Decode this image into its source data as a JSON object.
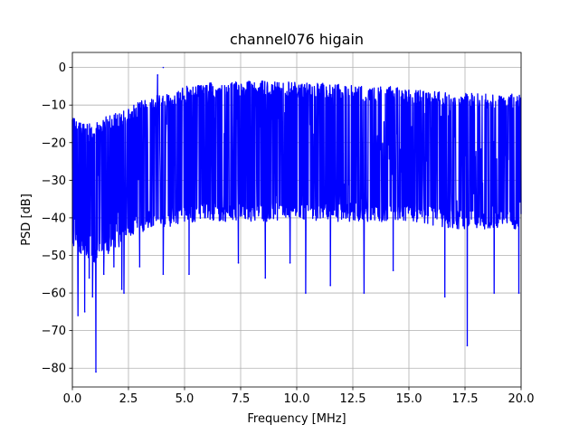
{
  "chart_data": {
    "type": "line",
    "title": "channel076 higain",
    "xlabel": "Frequency [MHz]",
    "ylabel": "PSD [dB]",
    "xlim": [
      0,
      20
    ],
    "ylim": [
      -85,
      4
    ],
    "xticks": [
      0.0,
      2.5,
      5.0,
      7.5,
      10.0,
      12.5,
      15.0,
      17.5,
      20.0
    ],
    "xtick_labels": [
      "0.0",
      "2.5",
      "5.0",
      "7.5",
      "10.0",
      "12.5",
      "15.0",
      "17.5",
      "20.0"
    ],
    "yticks": [
      0,
      -10,
      -20,
      -30,
      -40,
      -50,
      -60,
      -70,
      -80
    ],
    "ytick_labels": [
      "0",
      "−10",
      "−20",
      "−30",
      "−40",
      "−50",
      "−60",
      "−70",
      "−80"
    ],
    "grid": true,
    "series": [
      {
        "color": "#0000ff",
        "envelope": {
          "x": [
            0.0,
            0.5,
            1.0,
            1.5,
            2.0,
            2.5,
            3.0,
            3.5,
            4.0,
            4.5,
            5.0,
            5.5,
            6.0,
            7.0,
            8.0,
            9.0,
            10.0,
            11.0,
            12.0,
            13.0,
            14.0,
            15.0,
            16.0,
            17.0,
            18.0,
            19.0,
            20.0
          ],
          "upper": [
            -13,
            -15,
            -15,
            -13,
            -12,
            -11,
            -9,
            -8,
            -7,
            -6,
            -5,
            -5,
            -4,
            -4,
            -3.5,
            -3.5,
            -4,
            -4,
            -4.5,
            -5,
            -5,
            -5.5,
            -6,
            -6.5,
            -7,
            -7,
            -7
          ],
          "lower": [
            -48,
            -50,
            -52,
            -50,
            -48,
            -46,
            -44,
            -43,
            -43,
            -42,
            -42,
            -41,
            -41,
            -41,
            -41,
            -41,
            -41,
            -41,
            -41,
            -41,
            -41,
            -41,
            -42,
            -43,
            -43,
            -43,
            -43
          ]
        },
        "peaks": [
          {
            "x": 3.8,
            "y": -2
          },
          {
            "x": 4.05,
            "y": 0
          }
        ],
        "dips": [
          {
            "x": 0.25,
            "y": -66
          },
          {
            "x": 0.55,
            "y": -65
          },
          {
            "x": 0.75,
            "y": -56
          },
          {
            "x": 0.9,
            "y": -61
          },
          {
            "x": 1.05,
            "y": -81
          },
          {
            "x": 1.4,
            "y": -55
          },
          {
            "x": 1.85,
            "y": -53
          },
          {
            "x": 2.2,
            "y": -59
          },
          {
            "x": 2.3,
            "y": -60
          },
          {
            "x": 3.0,
            "y": -53
          },
          {
            "x": 4.05,
            "y": -55
          },
          {
            "x": 5.2,
            "y": -55
          },
          {
            "x": 7.4,
            "y": -52
          },
          {
            "x": 8.6,
            "y": -56
          },
          {
            "x": 9.7,
            "y": -52
          },
          {
            "x": 10.4,
            "y": -60
          },
          {
            "x": 11.5,
            "y": -58
          },
          {
            "x": 13.0,
            "y": -60
          },
          {
            "x": 14.3,
            "y": -54
          },
          {
            "x": 16.6,
            "y": -61
          },
          {
            "x": 17.6,
            "y": -74
          },
          {
            "x": 18.8,
            "y": -60
          },
          {
            "x": 19.9,
            "y": -60
          }
        ]
      }
    ]
  }
}
